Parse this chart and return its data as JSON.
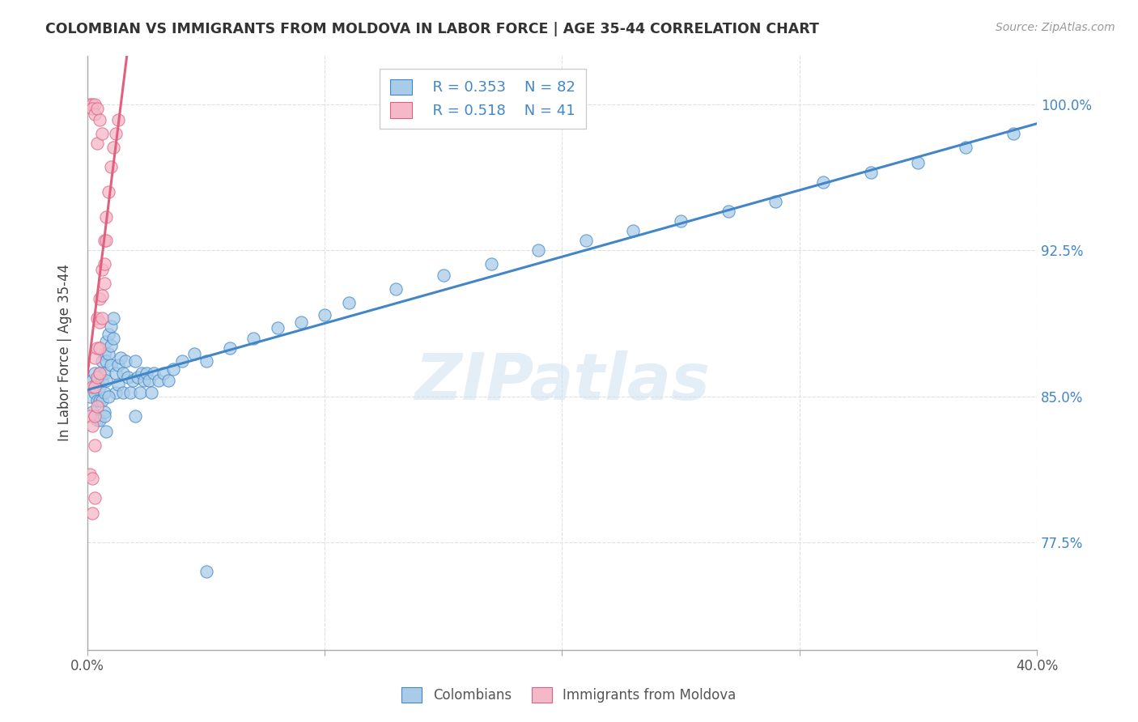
{
  "title": "COLOMBIAN VS IMMIGRANTS FROM MOLDOVA IN LABOR FORCE | AGE 35-44 CORRELATION CHART",
  "source": "Source: ZipAtlas.com",
  "ylabel": "In Labor Force | Age 35-44",
  "yticks": [
    0.775,
    0.85,
    0.925,
    1.0
  ],
  "ytick_labels": [
    "77.5%",
    "85.0%",
    "92.5%",
    "100.0%"
  ],
  "xlim": [
    0.0,
    0.4
  ],
  "ylim": [
    0.72,
    1.025
  ],
  "legend_r1": "R = 0.353",
  "legend_n1": "N = 82",
  "legend_r2": "R = 0.518",
  "legend_n2": "N = 41",
  "watermark": "ZIPatlas",
  "blue_color": "#a8cce8",
  "pink_color": "#f5b8c8",
  "line_blue": "#4286c8",
  "line_pink": "#e06080",
  "text_blue": "#4286c8",
  "grid_color": "#e0e0e0",
  "colombians_x": [
    0.001,
    0.002,
    0.002,
    0.003,
    0.003,
    0.003,
    0.004,
    0.004,
    0.004,
    0.005,
    0.005,
    0.005,
    0.005,
    0.006,
    0.006,
    0.006,
    0.007,
    0.007,
    0.007,
    0.007,
    0.008,
    0.008,
    0.008,
    0.009,
    0.009,
    0.01,
    0.01,
    0.01,
    0.011,
    0.011,
    0.012,
    0.012,
    0.013,
    0.013,
    0.014,
    0.015,
    0.015,
    0.016,
    0.017,
    0.018,
    0.019,
    0.02,
    0.021,
    0.022,
    0.023,
    0.024,
    0.025,
    0.026,
    0.027,
    0.028,
    0.03,
    0.032,
    0.034,
    0.036,
    0.04,
    0.045,
    0.05,
    0.06,
    0.07,
    0.08,
    0.09,
    0.1,
    0.11,
    0.13,
    0.15,
    0.17,
    0.19,
    0.21,
    0.23,
    0.25,
    0.27,
    0.29,
    0.31,
    0.33,
    0.35,
    0.37,
    0.39,
    0.007,
    0.008,
    0.009,
    0.02,
    0.05
  ],
  "colombians_y": [
    0.85,
    0.858,
    0.842,
    0.862,
    0.852,
    0.84,
    0.858,
    0.848,
    0.838,
    0.862,
    0.855,
    0.848,
    0.838,
    0.868,
    0.858,
    0.848,
    0.872,
    0.862,
    0.852,
    0.842,
    0.878,
    0.868,
    0.858,
    0.882,
    0.872,
    0.886,
    0.876,
    0.866,
    0.89,
    0.88,
    0.862,
    0.852,
    0.866,
    0.856,
    0.87,
    0.862,
    0.852,
    0.868,
    0.86,
    0.852,
    0.858,
    0.868,
    0.86,
    0.852,
    0.862,
    0.858,
    0.862,
    0.858,
    0.852,
    0.862,
    0.858,
    0.862,
    0.858,
    0.864,
    0.868,
    0.872,
    0.868,
    0.875,
    0.88,
    0.885,
    0.888,
    0.892,
    0.898,
    0.905,
    0.912,
    0.918,
    0.925,
    0.93,
    0.935,
    0.94,
    0.945,
    0.95,
    0.96,
    0.965,
    0.97,
    0.978,
    0.985,
    0.84,
    0.832,
    0.85,
    0.84,
    0.76
  ],
  "moldova_x": [
    0.001,
    0.001,
    0.002,
    0.002,
    0.002,
    0.003,
    0.003,
    0.003,
    0.003,
    0.004,
    0.004,
    0.004,
    0.004,
    0.005,
    0.005,
    0.005,
    0.005,
    0.006,
    0.006,
    0.006,
    0.007,
    0.007,
    0.007,
    0.008,
    0.008,
    0.009,
    0.01,
    0.011,
    0.012,
    0.013,
    0.001,
    0.002,
    0.003,
    0.002,
    0.003,
    0.004,
    0.004,
    0.005,
    0.006,
    0.002,
    0.003
  ],
  "moldova_y": [
    0.84,
    0.81,
    0.855,
    0.835,
    0.79,
    0.87,
    0.855,
    0.84,
    0.825,
    0.89,
    0.875,
    0.86,
    0.845,
    0.9,
    0.888,
    0.875,
    0.862,
    0.915,
    0.902,
    0.89,
    0.93,
    0.918,
    0.908,
    0.942,
    0.93,
    0.955,
    0.968,
    0.978,
    0.985,
    0.992,
    1.0,
    1.0,
    1.0,
    0.998,
    0.995,
    0.998,
    0.98,
    0.992,
    0.985,
    0.808,
    0.798
  ]
}
